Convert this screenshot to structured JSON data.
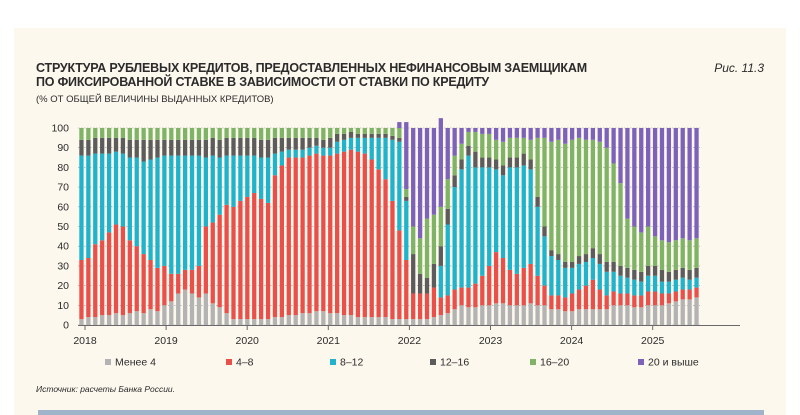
{
  "figure": {
    "title_line1": "СТРУКТУРА РУБЛЕВЫХ КРЕДИТОВ, ПРЕДОСТАВЛЕННЫХ НЕФИНАНСОВЫМ ЗАЕМЩИКАМ",
    "title_line2": "ПО ФИКСИРОВАННОЙ СТАВКЕ В ЗАВИСИМОСТИ ОТ СТАВКИ ПО КРЕДИТУ",
    "subtitle": "(% ОТ ОБЩЕЙ ВЕЛИЧИНЫ ВЫДАННЫХ КРЕДИТОВ)",
    "number": "Рис. 11.3",
    "source": "Источник: расчеты Банка России."
  },
  "colors": {
    "s1": "#b3b3b3",
    "s2": "#e9504a",
    "s3": "#1fb3cc",
    "s4": "#5c5c5c",
    "s5": "#7fb365",
    "s6": "#7d62b9"
  },
  "chart_data": {
    "type": "bar",
    "stacked": true,
    "ylim": [
      0,
      100
    ],
    "yticks": [
      "0",
      "10",
      "20",
      "30",
      "40",
      "50",
      "60",
      "70",
      "80",
      "90",
      "100"
    ],
    "xticks": [
      "2018",
      "2019",
      "2020",
      "2021",
      "2022",
      "2023",
      "2024",
      "2025"
    ],
    "grid": true,
    "legend_position": "bottom",
    "series": [
      {
        "name": "Менее 4",
        "values": [
          3,
          4,
          4,
          5,
          5,
          6,
          5,
          6,
          7,
          6,
          8,
          7,
          10,
          12,
          16,
          18,
          16,
          14,
          16,
          11,
          9,
          6,
          3,
          3,
          3,
          3,
          3,
          3,
          4,
          4,
          5,
          5,
          6,
          6,
          7,
          7,
          6,
          6,
          5,
          5,
          4,
          4,
          4,
          4,
          4,
          3,
          3,
          3,
          3,
          3,
          3,
          4,
          5,
          6,
          8,
          10,
          9,
          9,
          10,
          10,
          11,
          11,
          10,
          10,
          10,
          11,
          10,
          10,
          8,
          8,
          7,
          7,
          8,
          8,
          8,
          8,
          8,
          10,
          10,
          10,
          9,
          9,
          10,
          10,
          10,
          11,
          12,
          13,
          13,
          14
        ]
      },
      {
        "name": "4–8",
        "values": [
          30,
          30,
          37,
          38,
          42,
          45,
          45,
          37,
          33,
          30,
          25,
          22,
          20,
          14,
          10,
          10,
          12,
          16,
          34,
          41,
          47,
          55,
          57,
          60,
          62,
          64,
          61,
          59,
          72,
          77,
          80,
          80,
          79,
          80,
          80,
          79,
          80,
          81,
          83,
          84,
          84,
          83,
          80,
          75,
          70,
          60,
          45,
          30,
          13,
          13,
          13,
          15,
          9,
          9,
          10,
          9,
          10,
          12,
          15,
          20,
          26,
          23,
          18,
          16,
          19,
          20,
          15,
          10,
          7,
          7,
          7,
          9,
          10,
          12,
          15,
          10,
          7,
          7,
          6,
          6,
          6,
          6,
          7,
          7,
          6,
          5,
          5,
          5,
          5,
          5
        ]
      },
      {
        "name": "8–12",
        "values": [
          53,
          52,
          46,
          44,
          40,
          37,
          37,
          42,
          45,
          47,
          51,
          56,
          56,
          60,
          60,
          58,
          58,
          56,
          35,
          34,
          29,
          25,
          26,
          23,
          21,
          19,
          21,
          23,
          11,
          7,
          4,
          4,
          4,
          4,
          4,
          4,
          4,
          6,
          6,
          6,
          7,
          8,
          11,
          16,
          21,
          31,
          45,
          30,
          0,
          0,
          0,
          0,
          16,
          36,
          52,
          60,
          67,
          59,
          55,
          50,
          42,
          42,
          52,
          54,
          52,
          48,
          35,
          25,
          20,
          18,
          15,
          13,
          13,
          12,
          11,
          13,
          12,
          10,
          9,
          8,
          8,
          7,
          8,
          8,
          6,
          6,
          6,
          6,
          5,
          5
        ]
      },
      {
        "name": "12–16",
        "values": [
          8,
          8,
          8,
          8,
          8,
          7,
          8,
          9,
          9,
          11,
          10,
          9,
          8,
          8,
          8,
          8,
          8,
          8,
          9,
          9,
          9,
          9,
          9,
          9,
          9,
          9,
          9,
          9,
          8,
          7,
          6,
          6,
          6,
          5,
          4,
          4,
          5,
          4,
          3,
          3,
          2,
          2,
          2,
          2,
          2,
          2,
          2,
          2,
          20,
          10,
          8,
          12,
          10,
          8,
          6,
          5,
          5,
          8,
          5,
          5,
          5,
          5,
          5,
          5,
          6,
          5,
          5,
          5,
          3,
          3,
          3,
          3,
          4,
          4,
          5,
          5,
          5,
          5,
          5,
          5,
          5,
          5,
          5,
          5,
          6,
          5,
          5,
          5,
          5,
          5
        ]
      },
      {
        "name": "16–20",
        "values": [
          6,
          6,
          5,
          5,
          5,
          5,
          5,
          6,
          6,
          6,
          6,
          6,
          6,
          6,
          6,
          6,
          6,
          6,
          6,
          5,
          6,
          5,
          5,
          5,
          5,
          5,
          6,
          6,
          5,
          5,
          5,
          5,
          5,
          5,
          5,
          6,
          5,
          3,
          3,
          2,
          3,
          3,
          3,
          3,
          3,
          4,
          5,
          4,
          14,
          18,
          30,
          25,
          20,
          15,
          10,
          8,
          7,
          10,
          12,
          12,
          10,
          12,
          10,
          10,
          8,
          10,
          30,
          45,
          55,
          58,
          60,
          62,
          60,
          58,
          55,
          57,
          58,
          50,
          42,
          25,
          22,
          20,
          20,
          15,
          15,
          15,
          15,
          15,
          15,
          15
        ]
      },
      {
        "name": "20 и выше",
        "values": [
          0,
          0,
          0,
          0,
          0,
          0,
          0,
          0,
          0,
          0,
          0,
          0,
          0,
          0,
          0,
          0,
          0,
          0,
          0,
          0,
          0,
          0,
          0,
          0,
          0,
          0,
          0,
          0,
          0,
          0,
          0,
          0,
          0,
          0,
          0,
          0,
          0,
          0,
          0,
          0,
          0,
          0,
          0,
          0,
          0,
          0,
          3,
          34,
          50,
          56,
          46,
          44,
          45,
          26,
          14,
          8,
          2,
          2,
          3,
          3,
          6,
          7,
          5,
          5,
          5,
          6,
          5,
          5,
          7,
          6,
          8,
          6,
          5,
          6,
          6,
          7,
          10,
          18,
          28,
          46,
          50,
          53,
          50,
          55,
          57,
          58,
          57,
          56,
          57,
          56
        ]
      }
    ]
  },
  "legend": {
    "items": [
      "Менее 4",
      "4–8",
      "8–12",
      "12–16",
      "16–20",
      "20 и выше"
    ]
  }
}
